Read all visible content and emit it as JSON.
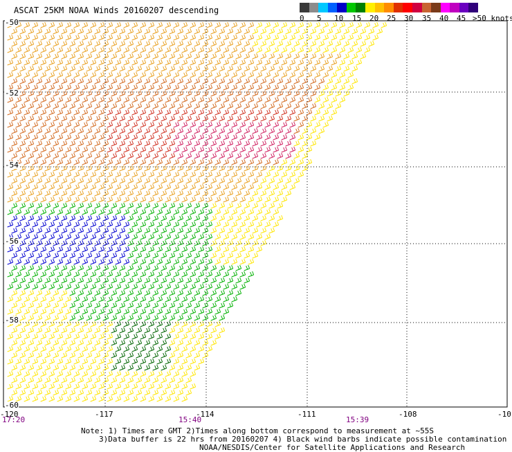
{
  "title": "ASCAT 25KM NOAA Winds 20160207 descending",
  "colorbar": {
    "labels": [
      "0",
      "5",
      "10",
      "15",
      "20",
      "25",
      "30",
      "35",
      "40",
      "45",
      ">50 knots"
    ],
    "colors": [
      "#3a3a3a",
      "#8c8c8c",
      "#00c8ff",
      "#0060ff",
      "#0000c8",
      "#00c800",
      "#008000",
      "#fff000",
      "#ffc000",
      "#ff8c00",
      "#e03000",
      "#ff0000",
      "#d00040",
      "#c86432",
      "#7a3a1a",
      "#ff00ff",
      "#c000c0",
      "#6a00c0",
      "#30007a"
    ]
  },
  "map": {
    "lat_labels": [
      "-50",
      "-52",
      "-54",
      "-56",
      "-58",
      "-60"
    ],
    "lon_labels": [
      "-120",
      "-117",
      "-114",
      "-111",
      "-108",
      "-10"
    ],
    "time_labels": [
      "17:20",
      "15:40",
      "15:39"
    ],
    "swath_colors": {
      "orange": "#e8a020",
      "dark_orange": "#d2691e",
      "red": "#d03020",
      "magenta": "#d02060",
      "yellow": "#ffe600",
      "green": "#00b000",
      "dark_green": "#006400",
      "blue": "#0000d0"
    }
  },
  "notes": {
    "line1": "Note: 1) Times are GMT 2)Times along bottom correspond to measurement at ~55S",
    "line2": "3)Data buffer is 22 hrs from 20160207 4) Black wind barbs indicate possible contamination",
    "line3": "NOAA/NESDIS/Center for Satellite Applications and Research"
  }
}
